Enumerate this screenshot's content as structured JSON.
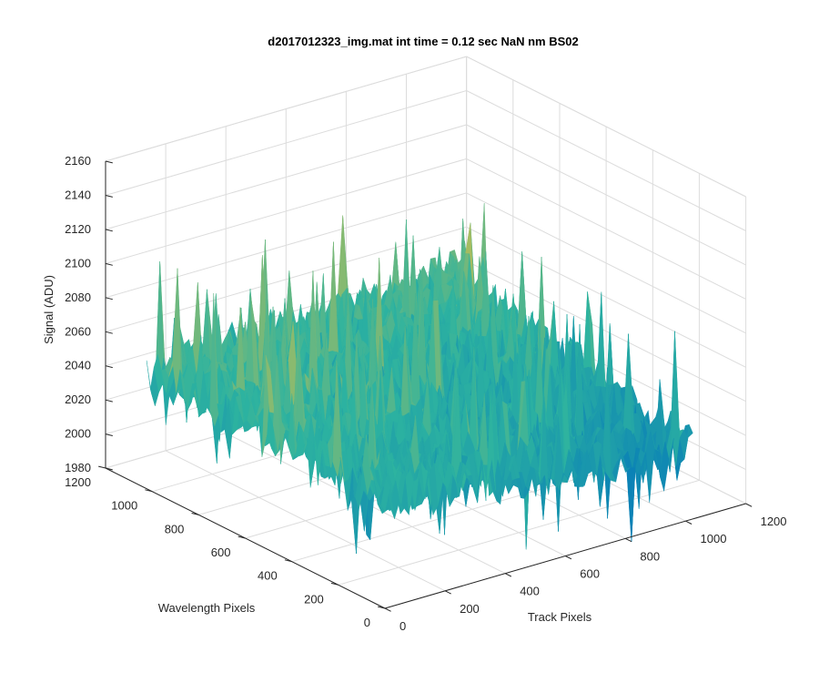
{
  "chart_data": {
    "type": "surface",
    "title": "d2017012323_img.mat int time = 0.12 sec  NaN nm BS02",
    "xlabel": "Track Pixels",
    "ylabel": "Wavelength Pixels",
    "zlabel": "Signal (ADU)",
    "xlim": [
      0,
      1200
    ],
    "ylim": [
      0,
      1200
    ],
    "zlim": [
      1980,
      2160
    ],
    "xticks": [
      0,
      200,
      400,
      600,
      800,
      1000,
      1200
    ],
    "yticks": [
      0,
      200,
      400,
      600,
      800,
      1000,
      1200
    ],
    "zticks": [
      1980,
      2000,
      2020,
      2040,
      2060,
      2080,
      2100,
      2120,
      2140,
      2160
    ],
    "grid": true,
    "colormap": "parula",
    "surface_extent": {
      "track": [
        0,
        1024
      ],
      "wavelength": [
        0,
        1024
      ]
    },
    "corner_means": [
      {
        "track": 0,
        "wavelength": 1024,
        "signal": 2050
      },
      {
        "track": 0,
        "wavelength": 0,
        "signal": 2045
      },
      {
        "track": 1024,
        "wavelength": 0,
        "signal": 2020
      },
      {
        "track": 1024,
        "wavelength": 1024,
        "signal": 2055
      }
    ],
    "noise_amplitude": 25,
    "colors": {
      "low": "#0072bd",
      "mid": "#2db3a0",
      "high": "#f9c235"
    }
  }
}
